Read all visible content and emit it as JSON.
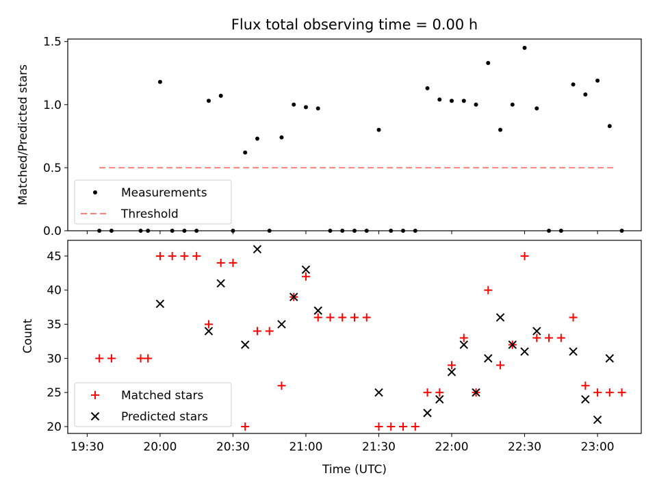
{
  "chart_data": [
    {
      "type": "scatter",
      "title": "Flux total observing time = 0.00 h",
      "xlabel": "",
      "ylabel": "Matched/Predicted stars",
      "xlim": [
        -8,
        228
      ],
      "ylim": [
        0,
        1.52
      ],
      "yticks": [
        0,
        0.5,
        1.0,
        1.5
      ],
      "ytick_labels": [
        "0.0",
        "0.5",
        "1.0",
        "1.5"
      ],
      "xticks": [
        0,
        30,
        60,
        90,
        120,
        150,
        180,
        210
      ],
      "legend": {
        "position": "lower-left",
        "entries": [
          {
            "label": "Measurements",
            "marker": "dot",
            "color": "#000000"
          },
          {
            "label": "Threshold",
            "marker": "dashed-line",
            "color": "#ff7f7f"
          }
        ]
      },
      "threshold": {
        "value": 0.5,
        "x_range": [
          5,
          217
        ],
        "color": "#ff7f7f"
      },
      "series": [
        {
          "name": "Measurements",
          "points": [
            [
              5,
              0
            ],
            [
              10,
              0
            ],
            [
              22,
              0
            ],
            [
              25,
              0
            ],
            [
              30,
              1.18
            ],
            [
              35,
              0
            ],
            [
              40,
              0
            ],
            [
              45,
              0
            ],
            [
              50,
              1.03
            ],
            [
              55,
              1.07
            ],
            [
              60,
              0
            ],
            [
              65,
              0.62
            ],
            [
              70,
              0.73
            ],
            [
              75,
              0
            ],
            [
              80,
              0.74
            ],
            [
              85,
              1.0
            ],
            [
              90,
              0.98
            ],
            [
              95,
              0.97
            ],
            [
              100,
              0
            ],
            [
              105,
              0
            ],
            [
              110,
              0
            ],
            [
              115,
              0
            ],
            [
              120,
              0.8
            ],
            [
              125,
              0
            ],
            [
              130,
              0
            ],
            [
              135,
              0
            ],
            [
              140,
              1.13
            ],
            [
              145,
              1.04
            ],
            [
              150,
              1.03
            ],
            [
              155,
              1.03
            ],
            [
              160,
              1.0
            ],
            [
              165,
              1.33
            ],
            [
              170,
              0.8
            ],
            [
              175,
              1.0
            ],
            [
              180,
              1.45
            ],
            [
              185,
              0.97
            ],
            [
              190,
              0
            ],
            [
              195,
              0
            ],
            [
              200,
              1.16
            ],
            [
              205,
              1.08
            ],
            [
              210,
              1.19
            ],
            [
              215,
              0.83
            ],
            [
              220,
              0
            ]
          ]
        }
      ]
    },
    {
      "type": "scatter",
      "title": "",
      "xlabel": "Time (UTC)",
      "ylabel": "Count",
      "xlim": [
        -8,
        228
      ],
      "ylim": [
        19,
        47.3
      ],
      "yticks": [
        20,
        25,
        30,
        35,
        40,
        45
      ],
      "ytick_labels": [
        "20",
        "25",
        "30",
        "35",
        "40",
        "45"
      ],
      "xticks": [
        0,
        30,
        60,
        90,
        120,
        150,
        180,
        210
      ],
      "xtick_labels": [
        "19:30",
        "20:00",
        "20:30",
        "21:00",
        "21:30",
        "22:00",
        "22:30",
        "23:00"
      ],
      "legend": {
        "position": "lower-left",
        "entries": [
          {
            "label": "Matched stars",
            "marker": "plus",
            "color": "#ff0000"
          },
          {
            "label": "Predicted stars",
            "marker": "x",
            "color": "#000000"
          }
        ]
      },
      "series": [
        {
          "name": "Matched stars",
          "points": [
            [
              5,
              30
            ],
            [
              10,
              30
            ],
            [
              22,
              30
            ],
            [
              25,
              30
            ],
            [
              30,
              45
            ],
            [
              35,
              45
            ],
            [
              40,
              45
            ],
            [
              45,
              45
            ],
            [
              50,
              35
            ],
            [
              55,
              44
            ],
            [
              60,
              44
            ],
            [
              65,
              20
            ],
            [
              70,
              34
            ],
            [
              75,
              34
            ],
            [
              80,
              26
            ],
            [
              85,
              39
            ],
            [
              90,
              42
            ],
            [
              95,
              36
            ],
            [
              100,
              36
            ],
            [
              105,
              36
            ],
            [
              110,
              36
            ],
            [
              115,
              36
            ],
            [
              120,
              20
            ],
            [
              125,
              20
            ],
            [
              130,
              20
            ],
            [
              135,
              20
            ],
            [
              140,
              25
            ],
            [
              145,
              25
            ],
            [
              150,
              29
            ],
            [
              155,
              33
            ],
            [
              160,
              25
            ],
            [
              165,
              40
            ],
            [
              170,
              29
            ],
            [
              175,
              32
            ],
            [
              180,
              45
            ],
            [
              185,
              33
            ],
            [
              190,
              33
            ],
            [
              195,
              33
            ],
            [
              200,
              36
            ],
            [
              205,
              26
            ],
            [
              210,
              25
            ],
            [
              215,
              25
            ],
            [
              220,
              25
            ]
          ]
        },
        {
          "name": "Predicted stars",
          "points": [
            [
              30,
              38
            ],
            [
              50,
              34
            ],
            [
              55,
              41
            ],
            [
              65,
              32
            ],
            [
              70,
              46
            ],
            [
              80,
              35
            ],
            [
              85,
              39
            ],
            [
              90,
              43
            ],
            [
              95,
              37
            ],
            [
              120,
              25
            ],
            [
              140,
              22
            ],
            [
              145,
              24
            ],
            [
              150,
              28
            ],
            [
              155,
              32
            ],
            [
              160,
              25
            ],
            [
              165,
              30
            ],
            [
              170,
              36
            ],
            [
              175,
              32
            ],
            [
              180,
              31
            ],
            [
              185,
              34
            ],
            [
              200,
              31
            ],
            [
              205,
              24
            ],
            [
              210,
              21
            ],
            [
              215,
              30
            ]
          ]
        }
      ]
    }
  ]
}
